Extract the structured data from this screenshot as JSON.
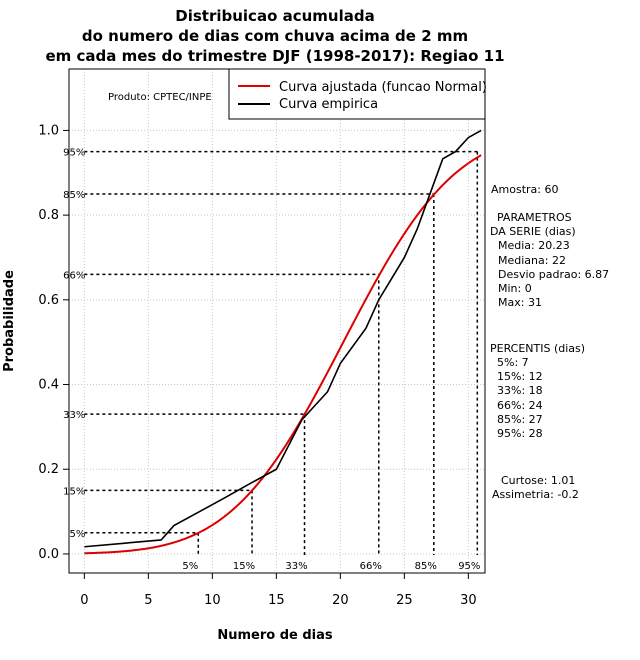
{
  "chart_data": {
    "type": "line",
    "title_lines": [
      "Distribuicao acumulada",
      "do numero de dias com chuva acima de 2 mm",
      "em cada mes do trimestre DJF (1998-2017): Regiao 11"
    ],
    "xlabel": "Numero de dias",
    "ylabel": "Probabilidade",
    "xlim": [
      -1.2,
      31.3
    ],
    "ylim": [
      -0.045,
      1.145
    ],
    "x_ticks": [
      0,
      5,
      10,
      15,
      20,
      25,
      30
    ],
    "y_ticks": [
      0.0,
      0.2,
      0.4,
      0.6,
      0.8,
      1.0
    ],
    "y_tick_labels": [
      "0.0",
      "0.2",
      "0.4",
      "0.6",
      "0.8",
      "1.0"
    ],
    "grid": true,
    "producer_label": "Produto: CPTEC/INPE",
    "legend": [
      {
        "label": "Curva ajustada (funcao Normal)",
        "color": "#dd0000"
      },
      {
        "label": "Curva empirica",
        "color": "#000000"
      }
    ],
    "series": [
      {
        "name": "Curva ajustada (funcao Normal)",
        "color": "#dd0000",
        "mean": 20.23,
        "sd": 6.87,
        "x_range": [
          0,
          31
        ]
      },
      {
        "name": "Curva empirica",
        "color": "#000000",
        "x": [
          0,
          6,
          7,
          9,
          11,
          13,
          15,
          17,
          19,
          20,
          22,
          23,
          24,
          25,
          26,
          27,
          28,
          29,
          30,
          31
        ],
        "y": [
          0.017,
          0.033,
          0.067,
          0.1,
          0.133,
          0.167,
          0.2,
          0.317,
          0.383,
          0.45,
          0.533,
          0.6,
          0.65,
          0.7,
          0.767,
          0.85,
          0.933,
          0.95,
          0.983,
          1.0
        ]
      }
    ],
    "percentiles": [
      {
        "label": "5%",
        "prob": 0.05,
        "x": 8.9
      },
      {
        "label": "15%",
        "prob": 0.15,
        "x": 13.1
      },
      {
        "label": "33%",
        "prob": 0.33,
        "x": 17.2
      },
      {
        "label": "66%",
        "prob": 0.66,
        "x": 23.0
      },
      {
        "label": "85%",
        "prob": 0.85,
        "x": 27.3
      },
      {
        "label": "95%",
        "prob": 0.95,
        "x": 30.7
      }
    ],
    "side_text": {
      "sample": "Amostra: 60",
      "params_title_1": "PARAMETROS",
      "params_title_2": "DA SERIE (dias)",
      "params": [
        "Media: 20.23",
        "Mediana: 22",
        "Desvio padrao: 6.87",
        "Min: 0",
        "Max: 31"
      ],
      "percentis_title": "PERCENTIS (dias)",
      "percentis": [
        "5%: 7",
        "15%: 12",
        "33%: 18",
        "66%: 24",
        "85%: 27",
        "95%: 28"
      ],
      "curtose": "Curtose: 1.01",
      "assimetria": "Assimetria: -0.2"
    }
  }
}
